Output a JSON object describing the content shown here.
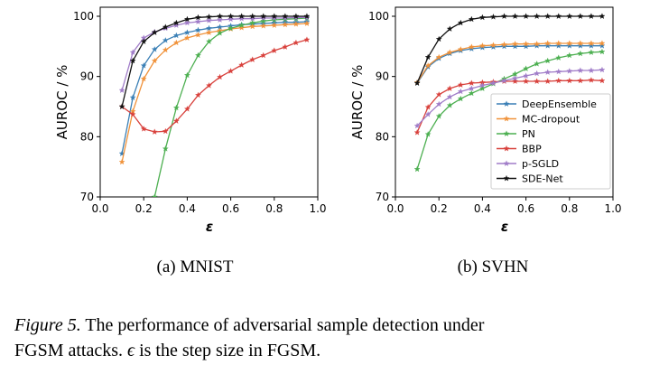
{
  "colors": {
    "DeepEnsemble": "#3a7fb5",
    "MC-dropout": "#f0923a",
    "PN": "#4caf50",
    "BBP": "#d8413c",
    "p-SGLD": "#a07cc8",
    "SDE-Net": "#111111"
  },
  "chart_data": [
    {
      "type": "line",
      "subcaption": "(a) MNIST",
      "xlabel": "ε",
      "ylabel": "AUROC / %",
      "xlim": [
        0.0,
        1.0
      ],
      "ylim": [
        70,
        101.5
      ],
      "xticks": [
        0.0,
        0.2,
        0.4,
        0.6,
        0.8,
        1.0
      ],
      "xtick_labels": [
        "0.0",
        "0.2",
        "0.4",
        "0.6",
        "0.8",
        "1.0"
      ],
      "yticks": [
        70,
        80,
        90,
        100
      ],
      "ytick_labels": [
        "70",
        "80",
        "90",
        "100"
      ],
      "x": [
        0.1,
        0.15,
        0.2,
        0.25,
        0.3,
        0.35,
        0.4,
        0.45,
        0.5,
        0.55,
        0.6,
        0.65,
        0.7,
        0.75,
        0.8,
        0.85,
        0.9,
        0.95
      ],
      "series": [
        {
          "name": "DeepEnsemble",
          "values": [
            77.2,
            86.5,
            91.8,
            94.5,
            96.0,
            96.8,
            97.3,
            97.7,
            98.0,
            98.2,
            98.4,
            98.6,
            98.7,
            98.8,
            98.9,
            99.0,
            99.0,
            99.1
          ]
        },
        {
          "name": "MC-dropout",
          "values": [
            75.8,
            84.2,
            89.6,
            92.6,
            94.4,
            95.6,
            96.4,
            96.9,
            97.3,
            97.6,
            97.9,
            98.1,
            98.3,
            98.4,
            98.5,
            98.6,
            98.7,
            98.8
          ]
        },
        {
          "name": "PN",
          "values": [
            null,
            null,
            null,
            70.0,
            78.0,
            84.8,
            90.2,
            93.5,
            95.8,
            97.2,
            98.0,
            98.5,
            98.9,
            99.2,
            99.4,
            99.5,
            99.6,
            99.7
          ]
        },
        {
          "name": "BBP",
          "values": [
            85.0,
            83.7,
            81.3,
            80.8,
            80.9,
            82.6,
            84.6,
            86.9,
            88.5,
            89.9,
            90.9,
            91.9,
            92.8,
            93.5,
            94.3,
            94.9,
            95.6,
            96.1
          ]
        },
        {
          "name": "p-SGLD",
          "values": [
            87.7,
            94.0,
            96.4,
            97.4,
            98.0,
            98.5,
            98.9,
            99.1,
            99.3,
            99.4,
            99.5,
            99.6,
            99.6,
            99.7,
            99.7,
            99.7,
            99.8,
            99.8
          ]
        },
        {
          "name": "SDE-Net",
          "values": [
            85.0,
            92.6,
            95.8,
            97.3,
            98.2,
            98.9,
            99.5,
            99.8,
            99.9,
            100.0,
            100.0,
            100.0,
            100.0,
            100.0,
            100.0,
            100.0,
            100.0,
            100.0
          ]
        }
      ]
    },
    {
      "type": "line",
      "subcaption": "(b) SVHN",
      "xlabel": "ε",
      "ylabel": "AUROC / %",
      "xlim": [
        0.0,
        1.0
      ],
      "ylim": [
        70,
        101.5
      ],
      "xticks": [
        0.0,
        0.2,
        0.4,
        0.6,
        0.8,
        1.0
      ],
      "xtick_labels": [
        "0.0",
        "0.2",
        "0.4",
        "0.6",
        "0.8",
        "1.0"
      ],
      "yticks": [
        70,
        80,
        90,
        100
      ],
      "ytick_labels": [
        "70",
        "80",
        "90",
        "100"
      ],
      "legend": "bottom-right",
      "x": [
        0.1,
        0.15,
        0.2,
        0.25,
        0.3,
        0.35,
        0.4,
        0.45,
        0.5,
        0.55,
        0.6,
        0.65,
        0.7,
        0.75,
        0.8,
        0.85,
        0.9,
        0.95
      ],
      "series": [
        {
          "name": "DeepEnsemble",
          "values": [
            88.9,
            91.6,
            93.0,
            93.8,
            94.3,
            94.6,
            94.8,
            94.9,
            95.0,
            95.0,
            95.0,
            95.1,
            95.1,
            95.1,
            95.1,
            95.1,
            95.1,
            95.1
          ]
        },
        {
          "name": "MC-dropout",
          "values": [
            89.0,
            91.8,
            93.2,
            94.0,
            94.5,
            94.9,
            95.1,
            95.2,
            95.3,
            95.4,
            95.4,
            95.4,
            95.5,
            95.5,
            95.5,
            95.5,
            95.5,
            95.5
          ]
        },
        {
          "name": "PN",
          "values": [
            74.6,
            80.4,
            83.4,
            85.2,
            86.3,
            87.2,
            88.0,
            88.8,
            89.6,
            90.4,
            91.3,
            92.1,
            92.6,
            93.1,
            93.5,
            93.8,
            94.0,
            94.1
          ]
        },
        {
          "name": "BBP",
          "values": [
            80.7,
            84.9,
            87.0,
            88.0,
            88.6,
            88.9,
            89.0,
            89.1,
            89.2,
            89.2,
            89.2,
            89.2,
            89.2,
            89.3,
            89.3,
            89.3,
            89.4,
            89.3
          ]
        },
        {
          "name": "p-SGLD",
          "values": [
            81.8,
            83.7,
            85.4,
            86.6,
            87.5,
            88.0,
            88.5,
            88.9,
            89.3,
            89.7,
            90.1,
            90.5,
            90.7,
            90.8,
            90.9,
            91.0,
            91.0,
            91.1
          ]
        },
        {
          "name": "SDE-Net",
          "values": [
            88.9,
            93.2,
            96.2,
            97.9,
            98.9,
            99.5,
            99.8,
            99.9,
            100.0,
            100.0,
            100.0,
            100.0,
            100.0,
            100.0,
            100.0,
            100.0,
            100.0,
            100.0
          ]
        }
      ]
    }
  ],
  "caption": {
    "figure_label": "Figure 5.",
    "line1_rest": " The performance of adversarial sample detection under",
    "line2_start": "FGSM attacks. ",
    "epsilon": "ϵ",
    "line2_rest": " is the step size in FGSM."
  }
}
